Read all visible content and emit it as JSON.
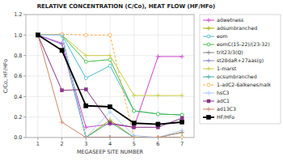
{
  "chart_data": {
    "type": "line",
    "title": "RELATIVE CONCENTRATION (C/Co), HEAT FLOW (HF/HFo)",
    "x_label": "MEGASEEP SITE NUMBER",
    "y_label": "C/Co, HF/HFo",
    "x": [
      1,
      2,
      3,
      4,
      5,
      6,
      7
    ],
    "xlim": [
      0.5,
      7.5
    ],
    "ylim": [
      0,
      1.2
    ],
    "xticks": [
      1,
      2,
      3,
      4,
      5,
      6,
      7
    ],
    "yticks": [
      {
        "value": 0,
        "label": "0.0"
      },
      0.2,
      0.4,
      0.6,
      0.8,
      {
        "value": 1.0,
        "label": "1.0"
      },
      1.2
    ],
    "grid": true,
    "legend": "right",
    "series": [
      {
        "name": "adwetness",
        "color": "#cc44cc",
        "marker": "plus",
        "line_style": "solid",
        "values": [
          1.0,
          0.92,
          0.1,
          0.13,
          0.1,
          0.79,
          0.79
        ]
      },
      {
        "name": "adsumbranched",
        "color": "#aaaa00",
        "marker": "plus",
        "line_style": "solid",
        "values": [
          1.0,
          1.0,
          0.0,
          0.17,
          0.0,
          0.0,
          0.0
        ]
      },
      {
        "name": "eom",
        "color": "#44bbcc",
        "marker": "circle",
        "line_style": "solid",
        "values": [
          1.0,
          1.0,
          0.58,
          0.7,
          0.26,
          0.23,
          0.22
        ]
      },
      {
        "name": "eomC(15-22)/(23-32)",
        "color": "#44bb44",
        "marker": "circle",
        "line_style": "solid",
        "values": [
          1.0,
          1.0,
          0.74,
          0.76,
          0.26,
          0.23,
          0.22
        ]
      },
      {
        "name": "trit23/3(Q)",
        "color": "#888888",
        "marker": "plus",
        "line_style": "solid",
        "values": [
          1.0,
          1.0,
          0.0,
          0.0,
          0.0,
          0.0,
          0.0
        ]
      },
      {
        "name": "st28daR+27aas(g)",
        "color": "#8888cc",
        "marker": "plus",
        "line_style": "solid",
        "values": [
          1.0,
          0.91,
          0.0,
          0.0,
          0.0,
          0.0,
          0.0
        ]
      },
      {
        "name": "1-marst",
        "color": "#cccc44",
        "marker": "plus",
        "line_style": "solid",
        "values": [
          1.0,
          1.0,
          0.8,
          0.8,
          0.41,
          0.41,
          0.41
        ]
      },
      {
        "name": "ocsumbranched",
        "color": "#44aaaa",
        "marker": "plus",
        "line_style": "solid",
        "values": [
          1.0,
          1.0,
          0.0,
          0.15,
          0.0,
          0.0,
          0.05
        ]
      },
      {
        "name": "1-adC2-6alkenes/nalk",
        "color": "#ffaa44",
        "marker": "circle",
        "line_style": "dashed",
        "values": [
          1.0,
          1.01,
          1.0,
          1.0,
          0.0,
          0.0,
          0.0
        ]
      },
      {
        "name": "hsC3",
        "color": "#aaccff",
        "marker": "plus",
        "line_style": "solid",
        "values": [
          1.0,
          1.0,
          0.0,
          0.25,
          0.02,
          0.0,
          0.07
        ]
      },
      {
        "name": "adC1",
        "color": "#883388",
        "marker": "square",
        "line_style": "solid",
        "values": [
          1.0,
          0.46,
          0.47,
          0.14,
          0.1,
          0.1,
          0.19
        ]
      },
      {
        "name": "ad13C3",
        "color": "#cc8866",
        "marker": "plus",
        "line_style": "solid",
        "values": [
          1.0,
          0.15,
          0.0,
          0.0,
          0.0,
          0.0,
          0.05
        ]
      },
      {
        "name": "HF/HFo",
        "color": "#000000",
        "marker": "square",
        "line_style": "solid",
        "values": [
          1.0,
          0.85,
          0.31,
          0.3,
          0.14,
          0.13,
          0.15
        ]
      }
    ]
  }
}
